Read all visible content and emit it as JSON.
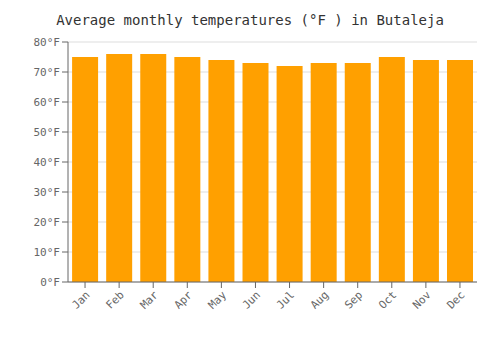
{
  "chart_data": {
    "type": "bar",
    "title": "Average monthly temperatures (°F ) in Butaleja",
    "categories": [
      "Jan",
      "Feb",
      "Mar",
      "Apr",
      "May",
      "Jun",
      "Jul",
      "Aug",
      "Sep",
      "Oct",
      "Nov",
      "Dec"
    ],
    "values": [
      75,
      76,
      76,
      75,
      74,
      73,
      72,
      73,
      73,
      75,
      74,
      74
    ],
    "color": "#FFA000",
    "ylim": [
      0,
      80
    ],
    "yticks": [
      {
        "value": 0,
        "label": "0°F"
      },
      {
        "value": 10,
        "label": "10°F"
      },
      {
        "value": 20,
        "label": "20°F"
      },
      {
        "value": 30,
        "label": "30°F"
      },
      {
        "value": 40,
        "label": "40°F"
      },
      {
        "value": 50,
        "label": "50°F"
      },
      {
        "value": 60,
        "label": "60°F"
      },
      {
        "value": 70,
        "label": "70°F"
      },
      {
        "value": 80,
        "label": "80°F"
      }
    ],
    "grid": true
  }
}
